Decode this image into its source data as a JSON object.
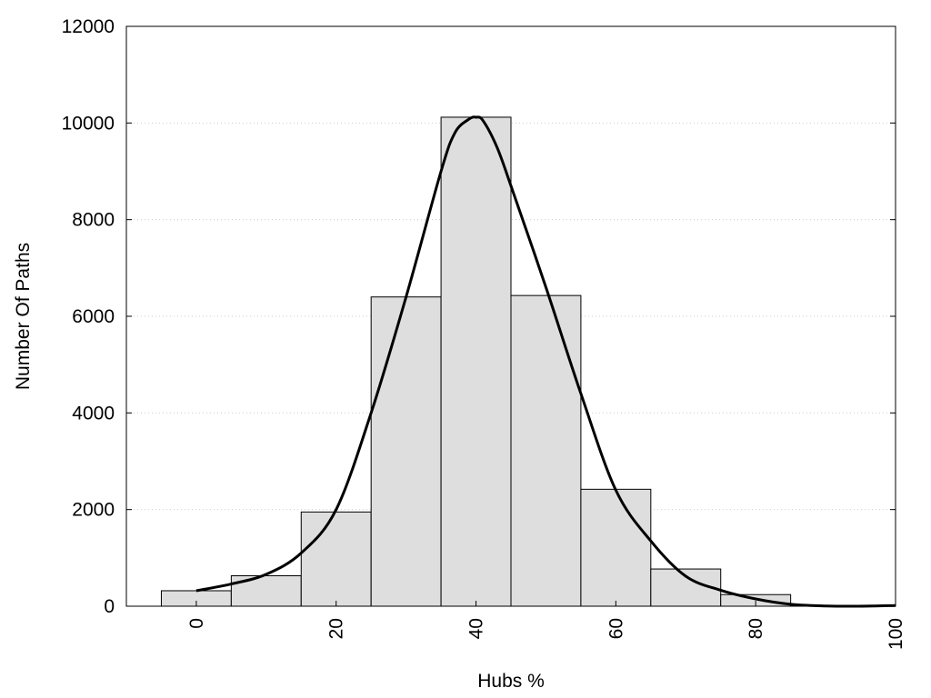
{
  "chart_data": {
    "type": "bar",
    "title": "",
    "xlabel": "Hubs %",
    "ylabel": "Number Of Paths",
    "xlim": [
      -10,
      100
    ],
    "ylim": [
      0,
      12000
    ],
    "x_ticks": [
      0,
      20,
      40,
      60,
      80,
      100
    ],
    "y_ticks": [
      0,
      2000,
      4000,
      6000,
      8000,
      10000,
      12000
    ],
    "grid": "horizontal dotted",
    "bin_width": 10,
    "categories": [
      0,
      10,
      20,
      30,
      40,
      50,
      60,
      70,
      80,
      90,
      100
    ],
    "values": [
      320,
      630,
      1950,
      6400,
      10120,
      6430,
      2420,
      770,
      240,
      10,
      20
    ],
    "density_curve": {
      "x": [
        0,
        5,
        10,
        15,
        20,
        25,
        30,
        35,
        37,
        39,
        40,
        41,
        43,
        45,
        50,
        55,
        60,
        65,
        70,
        75,
        80,
        85,
        90,
        95,
        100
      ],
      "y": [
        320,
        460,
        660,
        1100,
        2000,
        4000,
        6400,
        9000,
        9800,
        10080,
        10120,
        10050,
        9500,
        8700,
        6600,
        4400,
        2400,
        1350,
        620,
        330,
        150,
        40,
        5,
        0,
        15
      ]
    },
    "colors": {
      "bar_fill": "#dedede",
      "bar_stroke": "#000000",
      "curve": "#000000",
      "grid": "#cccccc"
    }
  }
}
